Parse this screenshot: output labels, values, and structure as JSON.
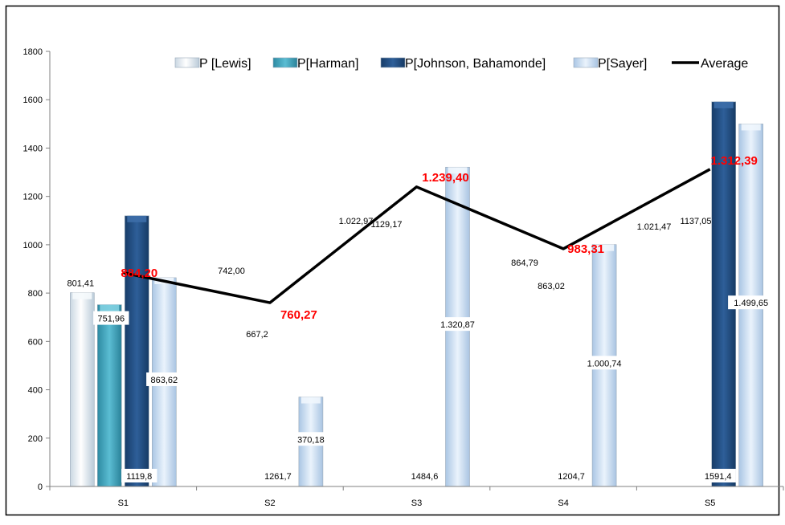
{
  "chart_data": {
    "type": "bar",
    "categories": [
      "S1",
      "S2",
      "S3",
      "S4",
      "S5"
    ],
    "ylim": [
      0,
      1800
    ],
    "yticks": [
      "0",
      "200",
      "400",
      "600",
      "800",
      "1000",
      "1200",
      "1400",
      "1600",
      "1800"
    ],
    "grid": false,
    "legend": "top",
    "series": [
      {
        "name": "P [Lewis]",
        "color": "#eaf4fb",
        "values": [
          801.41,
          null,
          null,
          null,
          null
        ],
        "labels": [
          "801,41",
          "",
          "",
          "",
          ""
        ]
      },
      {
        "name": "P[Harman]",
        "color": "#3aa0b8",
        "values": [
          751.96,
          null,
          null,
          null,
          null
        ],
        "labels": [
          "751,96",
          "",
          "",
          "",
          ""
        ]
      },
      {
        "name": "P[Johnson, Bahamonde]",
        "color": "#1f4e86",
        "values": [
          1119.8,
          null,
          null,
          null,
          1591.4
        ],
        "labels": [
          "1119,8",
          "1261,7",
          "1484,6",
          "1204,7",
          "1591,4"
        ]
      },
      {
        "name": "P[Sayer]",
        "color": "#cfe3f7",
        "values": [
          863.62,
          370.18,
          1320.87,
          1000.74,
          1499.65
        ],
        "labels": [
          "863,62",
          "370,18",
          "1.320,87",
          "1.000,74",
          "1.499,65"
        ]
      }
    ],
    "average": {
      "name": "Average",
      "color": "#000000",
      "values": [
        884.2,
        760.27,
        1239.4,
        983.31,
        1312.39
      ],
      "labels": [
        "884,20",
        "760,27",
        "1.239,40",
        "983,31",
        "1.312,39"
      ]
    },
    "extra_labels": [
      "742,00",
      "667,2",
      "1.022,97",
      "1129,17",
      "864,79",
      "863,02",
      "1.021,47",
      "1137,05"
    ]
  }
}
